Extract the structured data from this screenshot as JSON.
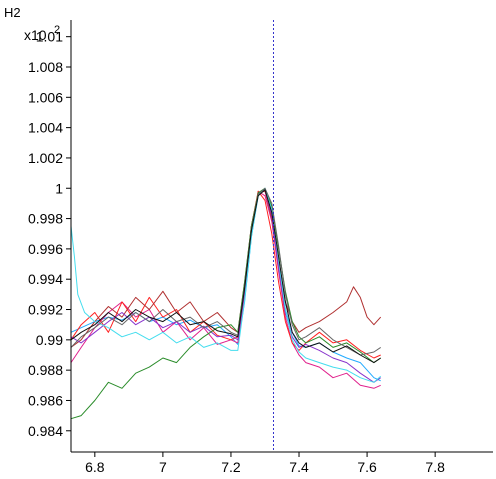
{
  "chart_data": {
    "type": "line",
    "title": "H2",
    "ylabel_multiplier": "x10",
    "ylabel_exponent": "2",
    "xlim": [
      6.73,
      7.97
    ],
    "ylim": [
      0.9826,
      1.0111
    ],
    "x_ticks": [
      {
        "value": 6.8,
        "label": "6.8"
      },
      {
        "value": 7.0,
        "label": "7"
      },
      {
        "value": 7.2,
        "label": "7.2"
      },
      {
        "value": 7.4,
        "label": "7.4"
      },
      {
        "value": 7.6,
        "label": "7.6"
      },
      {
        "value": 7.8,
        "label": "7.8"
      }
    ],
    "y_ticks": [
      {
        "value": 0.984,
        "label": "0.984"
      },
      {
        "value": 0.986,
        "label": "0.986"
      },
      {
        "value": 0.988,
        "label": "0.988"
      },
      {
        "value": 0.99,
        "label": "0.99"
      },
      {
        "value": 0.992,
        "label": "0.992"
      },
      {
        "value": 0.994,
        "label": "0.994"
      },
      {
        "value": 0.996,
        "label": "0.996"
      },
      {
        "value": 0.998,
        "label": "0.998"
      },
      {
        "value": 1.0,
        "label": "1"
      },
      {
        "value": 1.002,
        "label": "1.002"
      },
      {
        "value": 1.004,
        "label": "1.004"
      },
      {
        "value": 1.006,
        "label": "1.006"
      },
      {
        "value": 1.008,
        "label": "1.008"
      },
      {
        "value": 1.01,
        "label": "1.01"
      }
    ],
    "marker_x": 7.325,
    "marker_color": "#3333cc",
    "grid": false,
    "series": [
      {
        "color": "#22aaff",
        "points": [
          [
            6.73,
            0.9905
          ],
          [
            6.76,
            0.9908
          ],
          [
            6.8,
            0.9912
          ],
          [
            6.84,
            0.9915
          ],
          [
            6.88,
            0.9913
          ],
          [
            6.92,
            0.9918
          ],
          [
            6.96,
            0.9912
          ],
          [
            7.0,
            0.9915
          ],
          [
            7.04,
            0.991
          ],
          [
            7.08,
            0.9913
          ],
          [
            7.12,
            0.9908
          ],
          [
            7.16,
            0.991
          ],
          [
            7.2,
            0.9902
          ],
          [
            7.22,
            0.9897
          ],
          [
            7.24,
            0.9925
          ],
          [
            7.26,
            0.9968
          ],
          [
            7.28,
            0.9995
          ],
          [
            7.3,
            1.0
          ],
          [
            7.32,
            0.9985
          ],
          [
            7.34,
            0.995
          ],
          [
            7.36,
            0.992
          ],
          [
            7.38,
            0.9905
          ],
          [
            7.4,
            0.9896
          ],
          [
            7.42,
            0.9895
          ],
          [
            7.46,
            0.9898
          ],
          [
            7.5,
            0.9892
          ],
          [
            7.54,
            0.9888
          ],
          [
            7.58,
            0.9885
          ],
          [
            7.62,
            0.9875
          ],
          [
            7.64,
            0.9873
          ]
        ]
      },
      {
        "color": "#e0208c",
        "points": [
          [
            6.73,
            0.9885
          ],
          [
            6.76,
            0.9895
          ],
          [
            6.8,
            0.9908
          ],
          [
            6.84,
            0.9918
          ],
          [
            6.88,
            0.9925
          ],
          [
            6.92,
            0.9915
          ],
          [
            6.96,
            0.992
          ],
          [
            7.0,
            0.9905
          ],
          [
            7.04,
            0.9912
          ],
          [
            7.08,
            0.99
          ],
          [
            7.12,
            0.9908
          ],
          [
            7.16,
            0.9897
          ],
          [
            7.2,
            0.99
          ],
          [
            7.22,
            0.9898
          ],
          [
            7.24,
            0.993
          ],
          [
            7.26,
            0.997
          ],
          [
            7.28,
            0.9998
          ],
          [
            7.3,
            0.9995
          ],
          [
            7.32,
            0.9978
          ],
          [
            7.34,
            0.9945
          ],
          [
            7.36,
            0.9915
          ],
          [
            7.38,
            0.9898
          ],
          [
            7.4,
            0.989
          ],
          [
            7.42,
            0.9885
          ],
          [
            7.46,
            0.9882
          ],
          [
            7.5,
            0.9875
          ],
          [
            7.54,
            0.9878
          ],
          [
            7.58,
            0.987
          ],
          [
            7.62,
            0.9868
          ],
          [
            7.64,
            0.987
          ]
        ]
      },
      {
        "color": "#ff2020",
        "points": [
          [
            6.73,
            0.99
          ],
          [
            6.76,
            0.991
          ],
          [
            6.8,
            0.9918
          ],
          [
            6.84,
            0.9905
          ],
          [
            6.88,
            0.9925
          ],
          [
            6.92,
            0.9912
          ],
          [
            6.96,
            0.9928
          ],
          [
            7.0,
            0.9915
          ],
          [
            7.04,
            0.992
          ],
          [
            7.08,
            0.9905
          ],
          [
            7.12,
            0.9912
          ],
          [
            7.16,
            0.9903
          ],
          [
            7.2,
            0.99
          ],
          [
            7.22,
            0.9902
          ],
          [
            7.24,
            0.9935
          ],
          [
            7.26,
            0.9975
          ],
          [
            7.28,
            0.9998
          ],
          [
            7.3,
            0.9992
          ],
          [
            7.32,
            0.997
          ],
          [
            7.34,
            0.9938
          ],
          [
            7.36,
            0.9912
          ],
          [
            7.38,
            0.9898
          ],
          [
            7.4,
            0.9893
          ],
          [
            7.42,
            0.9898
          ],
          [
            7.46,
            0.9905
          ],
          [
            7.5,
            0.9898
          ],
          [
            7.54,
            0.99
          ],
          [
            7.58,
            0.9893
          ],
          [
            7.62,
            0.9888
          ],
          [
            7.64,
            0.989
          ]
        ]
      },
      {
        "color": "#b03030",
        "points": [
          [
            6.73,
            0.9895
          ],
          [
            6.76,
            0.99
          ],
          [
            6.8,
            0.9912
          ],
          [
            6.84,
            0.9922
          ],
          [
            6.88,
            0.9915
          ],
          [
            6.92,
            0.9928
          ],
          [
            6.96,
            0.992
          ],
          [
            7.0,
            0.9932
          ],
          [
            7.04,
            0.9918
          ],
          [
            7.08,
            0.9925
          ],
          [
            7.12,
            0.9912
          ],
          [
            7.16,
            0.9918
          ],
          [
            7.2,
            0.9908
          ],
          [
            7.22,
            0.9905
          ],
          [
            7.24,
            0.9938
          ],
          [
            7.26,
            0.9975
          ],
          [
            7.28,
            0.9997
          ],
          [
            7.3,
            0.9998
          ],
          [
            7.32,
            0.998
          ],
          [
            7.34,
            0.995
          ],
          [
            7.36,
            0.9925
          ],
          [
            7.38,
            0.9912
          ],
          [
            7.4,
            0.9905
          ],
          [
            7.42,
            0.9908
          ],
          [
            7.46,
            0.9912
          ],
          [
            7.5,
            0.9918
          ],
          [
            7.54,
            0.9925
          ],
          [
            7.56,
            0.9935
          ],
          [
            7.58,
            0.9928
          ],
          [
            7.6,
            0.9915
          ],
          [
            7.62,
            0.991
          ],
          [
            7.64,
            0.9915
          ]
        ]
      },
      {
        "color": "#8833cc",
        "points": [
          [
            6.73,
            0.9902
          ],
          [
            6.76,
            0.9898
          ],
          [
            6.8,
            0.9905
          ],
          [
            6.84,
            0.9912
          ],
          [
            6.88,
            0.9918
          ],
          [
            6.92,
            0.991
          ],
          [
            6.96,
            0.9915
          ],
          [
            7.0,
            0.9908
          ],
          [
            7.04,
            0.9912
          ],
          [
            7.08,
            0.9905
          ],
          [
            7.12,
            0.9909
          ],
          [
            7.16,
            0.9902
          ],
          [
            7.2,
            0.9903
          ],
          [
            7.22,
            0.99
          ],
          [
            7.24,
            0.9932
          ],
          [
            7.26,
            0.9972
          ],
          [
            7.28,
            0.9996
          ],
          [
            7.3,
            0.9999
          ],
          [
            7.32,
            0.9982
          ],
          [
            7.34,
            0.9948
          ],
          [
            7.36,
            0.9918
          ],
          [
            7.38,
            0.9902
          ],
          [
            7.4,
            0.9895
          ],
          [
            7.42,
            0.9897
          ],
          [
            7.46,
            0.9893
          ],
          [
            7.5,
            0.9888
          ],
          [
            7.54,
            0.9885
          ],
          [
            7.58,
            0.9878
          ],
          [
            7.62,
            0.9872
          ],
          [
            7.64,
            0.9875
          ]
        ]
      },
      {
        "color": "#2a8c2a",
        "points": [
          [
            6.73,
            0.9848
          ],
          [
            6.76,
            0.985
          ],
          [
            6.8,
            0.986
          ],
          [
            6.84,
            0.9872
          ],
          [
            6.88,
            0.9868
          ],
          [
            6.92,
            0.9878
          ],
          [
            6.96,
            0.9882
          ],
          [
            7.0,
            0.9888
          ],
          [
            7.04,
            0.9885
          ],
          [
            7.08,
            0.9895
          ],
          [
            7.12,
            0.9902
          ],
          [
            7.16,
            0.9908
          ],
          [
            7.2,
            0.991
          ],
          [
            7.22,
            0.9905
          ],
          [
            7.24,
            0.9938
          ],
          [
            7.26,
            0.9975
          ],
          [
            7.28,
            0.9997
          ],
          [
            7.3,
            1.0
          ],
          [
            7.32,
            0.9988
          ],
          [
            7.34,
            0.996
          ],
          [
            7.36,
            0.9932
          ],
          [
            7.38,
            0.9912
          ],
          [
            7.4,
            0.9902
          ],
          [
            7.42,
            0.9898
          ],
          [
            7.46,
            0.9902
          ],
          [
            7.5,
            0.9895
          ],
          [
            7.54,
            0.9898
          ],
          [
            7.58,
            0.9892
          ],
          [
            7.62,
            0.9885
          ],
          [
            7.64,
            0.9888
          ]
        ]
      },
      {
        "color": "#44ddee",
        "points": [
          [
            6.73,
            0.9975
          ],
          [
            6.74,
            0.9955
          ],
          [
            6.75,
            0.993
          ],
          [
            6.77,
            0.9918
          ],
          [
            6.8,
            0.9912
          ],
          [
            6.84,
            0.9908
          ],
          [
            6.88,
            0.9902
          ],
          [
            6.92,
            0.9905
          ],
          [
            6.96,
            0.99
          ],
          [
            7.0,
            0.9905
          ],
          [
            7.04,
            0.9898
          ],
          [
            7.08,
            0.9902
          ],
          [
            7.12,
            0.9895
          ],
          [
            7.16,
            0.9898
          ],
          [
            7.2,
            0.9893
          ],
          [
            7.22,
            0.9893
          ],
          [
            7.24,
            0.9926
          ],
          [
            7.26,
            0.9968
          ],
          [
            7.28,
            0.9995
          ],
          [
            7.3,
            1.0
          ],
          [
            7.32,
            0.9986
          ],
          [
            7.34,
            0.9952
          ],
          [
            7.36,
            0.992
          ],
          [
            7.38,
            0.99
          ],
          [
            7.4,
            0.9892
          ],
          [
            7.42,
            0.9888
          ],
          [
            7.46,
            0.9885
          ],
          [
            7.5,
            0.9882
          ],
          [
            7.54,
            0.988
          ],
          [
            7.58,
            0.9875
          ],
          [
            7.62,
            0.9872
          ],
          [
            7.64,
            0.9876
          ]
        ]
      },
      {
        "color": "#666666",
        "points": [
          [
            6.73,
            0.9895
          ],
          [
            6.76,
            0.9902
          ],
          [
            6.8,
            0.9908
          ],
          [
            6.84,
            0.9915
          ],
          [
            6.88,
            0.991
          ],
          [
            6.92,
            0.9918
          ],
          [
            6.96,
            0.9912
          ],
          [
            7.0,
            0.992
          ],
          [
            7.04,
            0.9912
          ],
          [
            7.08,
            0.9915
          ],
          [
            7.12,
            0.9908
          ],
          [
            7.16,
            0.9912
          ],
          [
            7.2,
            0.9905
          ],
          [
            7.22,
            0.9903
          ],
          [
            7.24,
            0.9935
          ],
          [
            7.26,
            0.9973
          ],
          [
            7.28,
            0.9996
          ],
          [
            7.3,
            1.0
          ],
          [
            7.32,
            0.999
          ],
          [
            7.34,
            0.9962
          ],
          [
            7.36,
            0.993
          ],
          [
            7.38,
            0.991
          ],
          [
            7.4,
            0.99
          ],
          [
            7.42,
            0.9902
          ],
          [
            7.46,
            0.9908
          ],
          [
            7.5,
            0.99
          ],
          [
            7.54,
            0.9895
          ],
          [
            7.58,
            0.989
          ],
          [
            7.62,
            0.9892
          ],
          [
            7.64,
            0.9895
          ]
        ]
      },
      {
        "color": "#111111",
        "points": [
          [
            6.73,
            0.99
          ],
          [
            6.76,
            0.9905
          ],
          [
            6.8,
            0.991
          ],
          [
            6.84,
            0.9918
          ],
          [
            6.88,
            0.9912
          ],
          [
            6.92,
            0.992
          ],
          [
            6.96,
            0.9915
          ],
          [
            7.0,
            0.9912
          ],
          [
            7.04,
            0.9918
          ],
          [
            7.08,
            0.991
          ],
          [
            7.12,
            0.9912
          ],
          [
            7.16,
            0.9906
          ],
          [
            7.2,
            0.9904
          ],
          [
            7.22,
            0.9902
          ],
          [
            7.24,
            0.9934
          ],
          [
            7.26,
            0.9972
          ],
          [
            7.28,
            0.9995
          ],
          [
            7.3,
            0.9999
          ],
          [
            7.32,
            0.9984
          ],
          [
            7.34,
            0.9955
          ],
          [
            7.36,
            0.9925
          ],
          [
            7.38,
            0.9905
          ],
          [
            7.4,
            0.9898
          ],
          [
            7.42,
            0.9895
          ],
          [
            7.46,
            0.9898
          ],
          [
            7.5,
            0.9892
          ],
          [
            7.54,
            0.9896
          ],
          [
            7.58,
            0.989
          ],
          [
            7.62,
            0.9885
          ],
          [
            7.64,
            0.9888
          ]
        ]
      }
    ]
  }
}
